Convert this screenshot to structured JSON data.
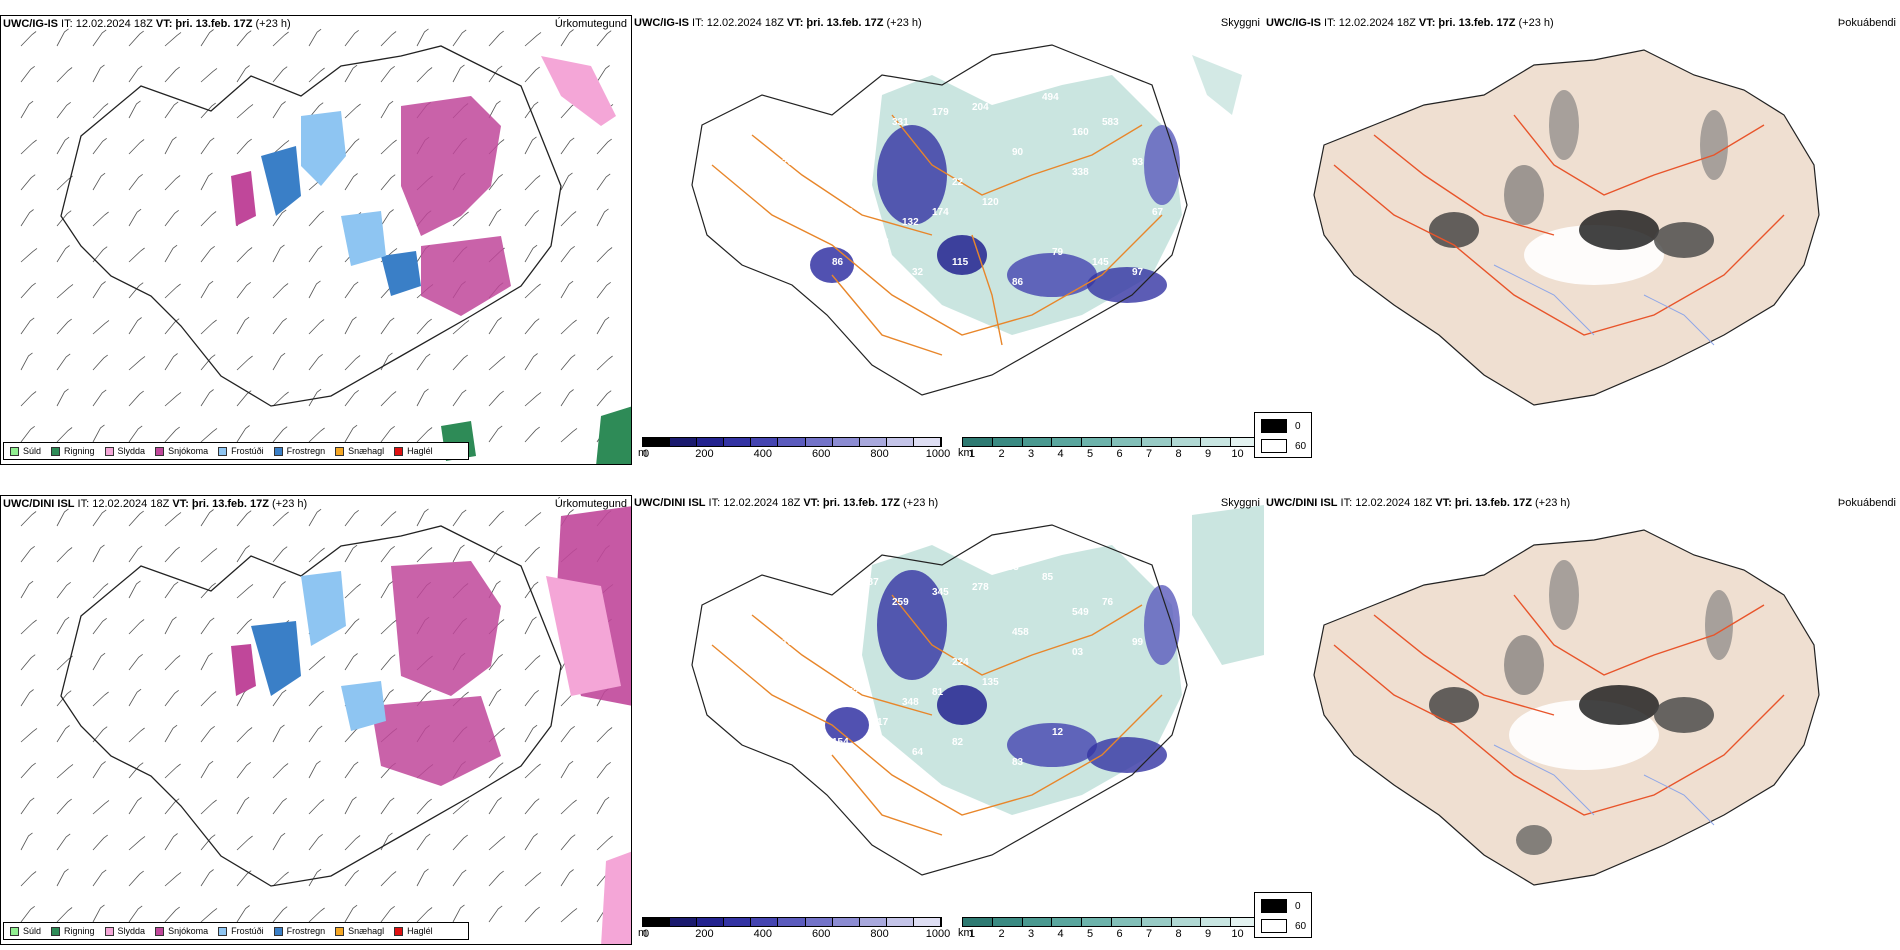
{
  "rows": [
    {
      "model_bold": "UWC/IG-IS",
      "it_prefix": " IT: ",
      "it_value": "12.02.2024 18Z",
      "vt_bold": " VT: þri. 13.feb. 17Z",
      "vt_suffix": " (+23 h)"
    },
    {
      "model_bold": "UWC/DINI ISL",
      "it_prefix": " IT: ",
      "it_value": "12.02.2024 18Z",
      "vt_bold": " VT: þri. 13.feb. 17Z",
      "vt_suffix": " (+23 h)"
    }
  ],
  "panel_titles": {
    "precip": "Úrkomutegund",
    "visibility": "Skyggni",
    "fog": "Þokuábendi"
  },
  "precip_legend": [
    {
      "label": "Súld",
      "color": "#90ee90"
    },
    {
      "label": "Rigning",
      "color": "#2e8b57"
    },
    {
      "label": "Slydda",
      "color": "#f4a6d7"
    },
    {
      "label": "Snjókoma",
      "color": "#c0479a"
    },
    {
      "label": "Frostúði",
      "color": "#8ec5f2"
    },
    {
      "label": "Frostregn",
      "color": "#3a7fc7"
    },
    {
      "label": "Snæhagl",
      "color": "#f5a623"
    },
    {
      "label": "Haglél",
      "color": "#e01010"
    }
  ],
  "cloud_base_bar": {
    "unit": "m",
    "ticks": [
      "0",
      "200",
      "400",
      "600",
      "800",
      "1000"
    ],
    "colors": [
      "#000000",
      "#1a1a6e",
      "#23238f",
      "#3333a3",
      "#4444b0",
      "#5b5bbd",
      "#7373c8",
      "#8c8cd2",
      "#a8a8dc",
      "#c4c4e8",
      "#dedef3"
    ]
  },
  "visibility_bar": {
    "unit": "km",
    "ticks": [
      "1",
      "2",
      "3",
      "4",
      "5",
      "6",
      "7",
      "8",
      "9",
      "10"
    ],
    "colors": [
      "#2e7a72",
      "#3a8a82",
      "#4a9990",
      "#5aa69e",
      "#6db3ab",
      "#82bfb8",
      "#98cbc5",
      "#b0d8d3",
      "#c8e5e1",
      "#e3f2f0"
    ]
  },
  "fog_legend": [
    {
      "label": "0",
      "color": "#000000"
    },
    {
      "label": "60",
      "color": "#ffffff"
    }
  ],
  "cloud_values_top": [
    "260",
    "109",
    "122",
    "331",
    "179",
    "204",
    "323",
    "494",
    "160",
    "583",
    "93",
    "338",
    "90",
    "120",
    "22",
    "174",
    "132",
    "158",
    "86",
    "96",
    "32",
    "115",
    "86",
    "79",
    "145",
    "97",
    "67"
  ],
  "cloud_values_bottom": [
    "109",
    "303",
    "187",
    "259",
    "345",
    "278",
    "133",
    "85",
    "549",
    "76",
    "99",
    "03",
    "458",
    "135",
    "224",
    "81",
    "348",
    "117",
    "154",
    "152",
    "64",
    "82",
    "83",
    "12"
  ]
}
